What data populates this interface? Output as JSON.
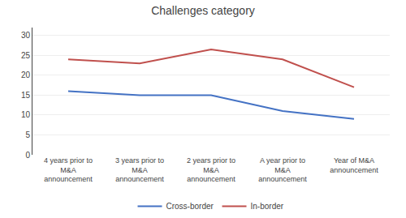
{
  "chart_data": {
    "type": "line",
    "title": "Challenges category",
    "categories": [
      "4 years prior to\nM&A\nannouncement",
      "3 years prior to\nM&A\nannouncement",
      "2 years prior to\nM&A\nannouncement",
      "A year prior to\nM&A\nannouncement",
      "Year of M&A\nannouncement"
    ],
    "series": [
      {
        "name": "Cross-border",
        "color": "#4472C4",
        "values": [
          16,
          15,
          15,
          11,
          9
        ]
      },
      {
        "name": "In-border",
        "color": "#C0504D",
        "values": [
          24,
          23,
          26.5,
          24,
          17
        ]
      }
    ],
    "ylim": [
      0,
      32
    ],
    "yticks": [
      0,
      5,
      10,
      15,
      20,
      25,
      30
    ],
    "grid": true,
    "legend": "bottom"
  }
}
